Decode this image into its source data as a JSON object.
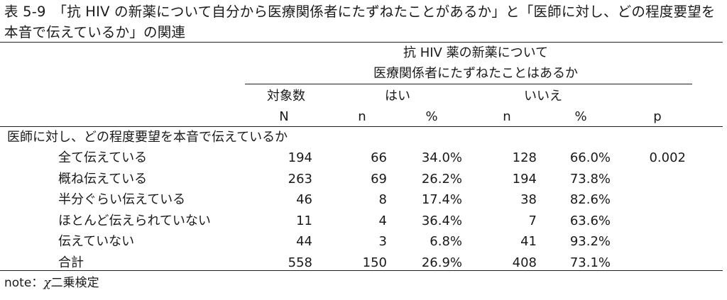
{
  "title": "表 5-9　「抗 HIV の新薬について自分から医療関係者にたずねたことがあるか」と「医師に対し、どの程度要望を本音で伝えているか」の関連",
  "header": {
    "group_line1": "抗 HIV 薬の新薬について",
    "group_line2": "医療関係者にたずねたことはあるか",
    "subjects_label": "対象数",
    "yes_label": "はい",
    "no_label": "いいえ",
    "col_N": "N",
    "col_yes_n": "n",
    "col_yes_pct": "%",
    "col_no_n": "n",
    "col_no_pct": "%",
    "col_p": "p"
  },
  "section_label": "医師に対し、どの程度要望を本音で伝えているか",
  "rows": [
    {
      "label": "全て伝えている",
      "N": "194",
      "yes_n": "66",
      "yes_pct": "34.0%",
      "no_n": "128",
      "no_pct": "66.0%",
      "p": "0.002"
    },
    {
      "label": "概ね伝えている",
      "N": "263",
      "yes_n": "69",
      "yes_pct": "26.2%",
      "no_n": "194",
      "no_pct": "73.8%",
      "p": ""
    },
    {
      "label": "半分ぐらい伝えている",
      "N": "46",
      "yes_n": "8",
      "yes_pct": "17.4%",
      "no_n": "38",
      "no_pct": "82.6%",
      "p": ""
    },
    {
      "label": "ほとんど伝えられていない",
      "N": "11",
      "yes_n": "4",
      "yes_pct": "36.4%",
      "no_n": "7",
      "no_pct": "63.6%",
      "p": ""
    },
    {
      "label": "伝えていない",
      "N": "44",
      "yes_n": "3",
      "yes_pct": "6.8%",
      "no_n": "41",
      "no_pct": "93.2%",
      "p": ""
    },
    {
      "label": "合計",
      "N": "558",
      "yes_n": "150",
      "yes_pct": "26.9%",
      "no_n": "408",
      "no_pct": "73.1%",
      "p": ""
    }
  ],
  "note_prefix": "note：",
  "note_symbol": "χ",
  "note_text": "二乗検定"
}
